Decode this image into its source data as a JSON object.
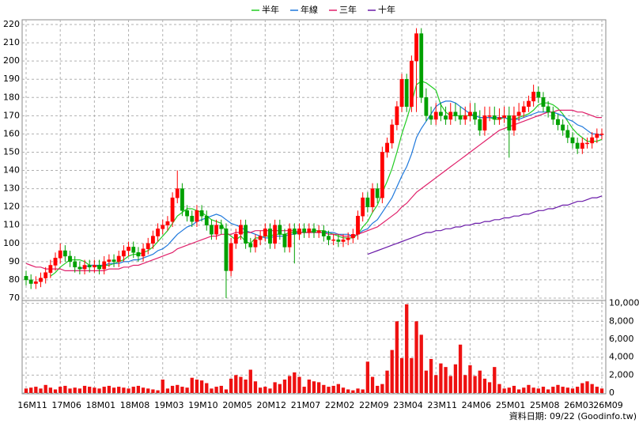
{
  "chart_data": {
    "type": "candlestick",
    "categories": [
      "16M11",
      null,
      null,
      null,
      null,
      null,
      null,
      "17M06",
      null,
      null,
      null,
      null,
      null,
      null,
      "18M01",
      null,
      null,
      null,
      null,
      null,
      null,
      "18M08",
      null,
      null,
      null,
      null,
      null,
      null,
      "19M03",
      null,
      null,
      null,
      null,
      null,
      null,
      "19M10",
      null,
      null,
      null,
      null,
      null,
      null,
      "20M05",
      null,
      null,
      null,
      null,
      null,
      null,
      "20M12",
      null,
      null,
      null,
      null,
      null,
      null,
      "21M07",
      null,
      null,
      null,
      null,
      null,
      null,
      "22M02",
      null,
      null,
      null,
      null,
      null,
      null,
      "22M09",
      null,
      null,
      null,
      null,
      null,
      null,
      "23M04",
      null,
      null,
      null,
      null,
      null,
      null,
      "23M11",
      null,
      null,
      null,
      null,
      null,
      null,
      "24M06",
      null,
      null,
      null,
      null,
      null,
      null,
      "25M01",
      null,
      null,
      null,
      null,
      null,
      null,
      "25M08",
      null,
      null,
      null,
      null,
      null,
      null,
      "26M03",
      null,
      null,
      null,
      null,
      null,
      "26M09"
    ],
    "open": [
      82,
      80,
      78,
      79,
      81,
      84,
      88,
      92,
      96,
      93,
      90,
      87,
      86,
      88,
      87,
      88,
      86,
      90,
      91,
      90,
      93,
      96,
      98,
      95,
      93,
      97,
      100,
      104,
      108,
      110,
      112,
      125,
      130,
      118,
      115,
      112,
      118,
      115,
      110,
      105,
      110,
      108,
      85,
      100,
      105,
      110,
      100,
      98,
      102,
      104,
      108,
      100,
      110,
      105,
      98,
      108,
      105,
      108,
      106,
      108,
      106,
      107,
      104,
      102,
      102,
      101,
      102,
      103,
      105,
      115,
      125,
      120,
      130,
      125,
      150,
      155,
      165,
      175,
      190,
      175,
      200,
      215,
      180,
      170,
      168,
      172,
      170,
      168,
      172,
      170,
      168,
      170,
      172,
      168,
      162,
      170,
      170,
      168,
      169,
      170,
      162,
      170,
      172,
      175,
      178,
      183,
      180,
      175,
      172,
      168,
      165,
      162,
      158,
      155,
      152,
      155,
      155,
      158,
      160
    ],
    "high": [
      85,
      83,
      82,
      84,
      87,
      91,
      95,
      100,
      99,
      96,
      93,
      90,
      91,
      91,
      91,
      91,
      93,
      94,
      94,
      96,
      99,
      101,
      101,
      98,
      100,
      103,
      107,
      111,
      113,
      115,
      128,
      140,
      133,
      121,
      118,
      121,
      121,
      118,
      113,
      113,
      113,
      111,
      103,
      108,
      113,
      113,
      103,
      105,
      107,
      111,
      111,
      113,
      113,
      108,
      111,
      111,
      111,
      111,
      111,
      111,
      110,
      110,
      107,
      105,
      105,
      105,
      106,
      108,
      118,
      128,
      128,
      133,
      133,
      153,
      158,
      168,
      178,
      193,
      193,
      203,
      218,
      218,
      185,
      175,
      177,
      177,
      175,
      177,
      177,
      175,
      175,
      177,
      177,
      173,
      175,
      175,
      175,
      174,
      175,
      175,
      175,
      177,
      178,
      181,
      187,
      186,
      183,
      178,
      175,
      171,
      168,
      165,
      161,
      158,
      158,
      158,
      161,
      163,
      163
    ],
    "low": [
      77,
      75,
      75,
      76,
      78,
      81,
      85,
      89,
      90,
      87,
      84,
      83,
      83,
      84,
      84,
      83,
      83,
      87,
      87,
      87,
      90,
      93,
      92,
      90,
      90,
      94,
      97,
      101,
      105,
      107,
      109,
      122,
      115,
      112,
      109,
      109,
      112,
      107,
      102,
      102,
      105,
      70,
      82,
      97,
      102,
      97,
      95,
      95,
      99,
      101,
      97,
      97,
      102,
      95,
      95,
      89,
      102,
      103,
      103,
      103,
      103,
      101,
      99,
      99,
      98,
      98,
      99,
      100,
      102,
      112,
      117,
      117,
      122,
      122,
      147,
      152,
      162,
      172,
      172,
      172,
      172,
      177,
      167,
      165,
      165,
      167,
      165,
      165,
      167,
      165,
      165,
      167,
      165,
      159,
      159,
      167,
      165,
      165,
      166,
      147,
      159,
      167,
      169,
      172,
      175,
      177,
      172,
      169,
      165,
      162,
      159,
      155,
      152,
      149,
      149,
      152,
      152,
      155,
      157
    ],
    "close": [
      80,
      78,
      79,
      81,
      84,
      88,
      92,
      96,
      93,
      90,
      87,
      86,
      88,
      87,
      88,
      86,
      90,
      91,
      90,
      93,
      96,
      98,
      95,
      93,
      97,
      100,
      104,
      108,
      110,
      112,
      125,
      130,
      118,
      115,
      112,
      118,
      115,
      110,
      105,
      110,
      108,
      85,
      100,
      105,
      110,
      100,
      98,
      102,
      104,
      108,
      100,
      110,
      105,
      98,
      108,
      105,
      108,
      106,
      108,
      106,
      107,
      104,
      102,
      102,
      101,
      102,
      103,
      105,
      115,
      125,
      120,
      130,
      125,
      150,
      155,
      165,
      175,
      190,
      175,
      200,
      215,
      180,
      170,
      168,
      172,
      170,
      168,
      172,
      170,
      168,
      170,
      172,
      168,
      162,
      170,
      170,
      168,
      169,
      170,
      162,
      170,
      172,
      175,
      178,
      183,
      180,
      175,
      172,
      168,
      165,
      162,
      158,
      155,
      152,
      155,
      155,
      158,
      160,
      160
    ],
    "up_color": "#ff0000",
    "down_color": "#00a000",
    "ylim": [
      70,
      220
    ],
    "yticks": [
      70,
      80,
      90,
      100,
      110,
      120,
      130,
      140,
      150,
      160,
      170,
      180,
      190,
      200,
      210,
      220
    ],
    "grid": true,
    "series": [
      {
        "name": "半年",
        "color": "#22cc22",
        "values": [
          null,
          null,
          null,
          null,
          null,
          82,
          84,
          87,
          89,
          91,
          91,
          91,
          90,
          88,
          88,
          87,
          88,
          88,
          89,
          90,
          91,
          93,
          94,
          94,
          95,
          96,
          98,
          101,
          104,
          107,
          111,
          115,
          117,
          119,
          119,
          118,
          117,
          115,
          113,
          112,
          111,
          106,
          104,
          102,
          104,
          101,
          100,
          103,
          103,
          104,
          104,
          105,
          105,
          105,
          106,
          106,
          106,
          106,
          106,
          107,
          107,
          107,
          106,
          105,
          104,
          103,
          103,
          103,
          105,
          109,
          112,
          117,
          121,
          128,
          134,
          141,
          150,
          160,
          168,
          177,
          187,
          189,
          188,
          186,
          184,
          176,
          172,
          170,
          170,
          170,
          170,
          170,
          170,
          169,
          169,
          169,
          168,
          168,
          169,
          168,
          168,
          169,
          170,
          171,
          173,
          176,
          177,
          177,
          176,
          174,
          171,
          167,
          163,
          160,
          158,
          156,
          156,
          156,
          157
        ]
      },
      {
        "name": "年線",
        "color": "#1e78dc",
        "values": [
          null,
          null,
          null,
          null,
          null,
          null,
          null,
          null,
          null,
          null,
          null,
          86,
          87,
          88,
          88,
          88,
          88,
          89,
          89,
          89,
          90,
          90,
          91,
          91,
          92,
          93,
          94,
          96,
          97,
          99,
          102,
          105,
          107,
          109,
          110,
          112,
          113,
          114,
          115,
          116,
          115,
          113,
          111,
          110,
          109,
          107,
          106,
          105,
          104,
          103,
          103,
          104,
          104,
          104,
          105,
          105,
          106,
          106,
          106,
          106,
          106,
          106,
          106,
          106,
          105,
          105,
          105,
          104,
          105,
          107,
          108,
          111,
          113,
          117,
          121,
          125,
          131,
          137,
          142,
          149,
          158,
          163,
          167,
          171,
          175,
          177,
          178,
          178,
          177,
          175,
          173,
          171,
          170,
          169,
          169,
          169,
          169,
          169,
          169,
          168,
          168,
          168,
          169,
          170,
          171,
          172,
          172,
          172,
          172,
          171,
          170,
          168,
          167,
          165,
          164,
          162,
          160,
          160,
          159
        ]
      },
      {
        "name": "三年",
        "color": "#e0206a",
        "values": [
          89,
          88,
          87,
          87,
          86,
          86,
          86,
          86,
          85,
          85,
          85,
          85,
          85,
          85,
          85,
          85,
          85,
          86,
          86,
          86,
          87,
          87,
          88,
          88,
          89,
          90,
          91,
          92,
          93,
          94,
          95,
          97,
          98,
          99,
          100,
          101,
          102,
          103,
          104,
          104,
          105,
          105,
          105,
          106,
          106,
          106,
          106,
          107,
          107,
          107,
          107,
          107,
          107,
          107,
          107,
          107,
          106,
          106,
          106,
          106,
          106,
          106,
          105,
          105,
          105,
          104,
          104,
          104,
          105,
          106,
          107,
          108,
          109,
          111,
          113,
          115,
          117,
          120,
          122,
          125,
          128,
          130,
          132,
          134,
          136,
          138,
          140,
          142,
          144,
          146,
          148,
          150,
          152,
          154,
          156,
          158,
          160,
          162,
          163,
          164,
          165,
          166,
          167,
          168,
          169,
          170,
          171,
          172,
          172,
          173,
          173,
          173,
          173,
          172,
          172,
          171,
          170,
          169,
          169
        ]
      },
      {
        "name": "十年",
        "color": "#6a1aa8",
        "values": [
          null,
          null,
          null,
          null,
          null,
          null,
          null,
          null,
          null,
          null,
          null,
          null,
          null,
          null,
          null,
          null,
          null,
          null,
          null,
          null,
          null,
          null,
          null,
          null,
          null,
          null,
          null,
          null,
          null,
          null,
          null,
          null,
          null,
          null,
          null,
          null,
          null,
          null,
          null,
          null,
          null,
          null,
          null,
          null,
          null,
          null,
          null,
          null,
          null,
          null,
          null,
          null,
          null,
          null,
          null,
          null,
          null,
          null,
          null,
          null,
          null,
          null,
          null,
          null,
          null,
          null,
          null,
          null,
          null,
          null,
          94,
          95,
          96,
          97,
          98,
          99,
          100,
          101,
          102,
          103,
          104,
          105,
          106,
          106,
          107,
          107,
          108,
          108,
          109,
          109,
          110,
          110,
          111,
          111,
          112,
          112,
          113,
          113,
          114,
          114,
          115,
          115,
          116,
          116,
          117,
          118,
          118,
          119,
          119,
          120,
          121,
          121,
          122,
          123,
          123,
          124,
          125,
          125,
          126
        ]
      }
    ],
    "volume": {
      "type": "bar",
      "color": "#ee1111",
      "values": [
        500,
        600,
        700,
        500,
        900,
        600,
        400,
        700,
        800,
        500,
        600,
        500,
        800,
        700,
        600,
        500,
        700,
        800,
        600,
        700,
        600,
        500,
        700,
        800,
        600,
        500,
        400,
        300,
        1500,
        500,
        800,
        900,
        700,
        600,
        1700,
        1500,
        1400,
        1100,
        500,
        700,
        800,
        400,
        1600,
        2000,
        1800,
        1500,
        2600,
        1300,
        600,
        700,
        500,
        1200,
        1000,
        1500,
        1900,
        2300,
        1800,
        700,
        1500,
        1300,
        1200,
        900,
        700,
        800,
        1000,
        600,
        400,
        300,
        500,
        400,
        3500,
        1800,
        800,
        1000,
        2500,
        4800,
        8000,
        3900,
        9900,
        3900,
        8000,
        6500,
        2500,
        3800,
        2000,
        3300,
        2900,
        1900,
        3200,
        5400,
        2000,
        3100,
        1900,
        2500,
        1600,
        1200,
        2900,
        1000,
        500,
        600,
        800,
        400,
        600,
        900,
        600,
        500,
        700,
        400,
        700,
        900,
        700,
        600,
        500,
        700,
        1100,
        1300,
        1000,
        700,
        500
      ],
      "ylim": [
        0,
        10500
      ],
      "yticks": [
        0,
        {
          "value": 2000,
          "label": "2,000"
        },
        {
          "value": 4000,
          "label": "4,000"
        },
        {
          "value": 6000,
          "label": "6,000"
        },
        {
          "value": 8000,
          "label": "8,000"
        },
        {
          "value": 10000,
          "label": "10,000"
        }
      ]
    },
    "footer": "資料日期: 09/22 (Goodinfo.tw)"
  }
}
